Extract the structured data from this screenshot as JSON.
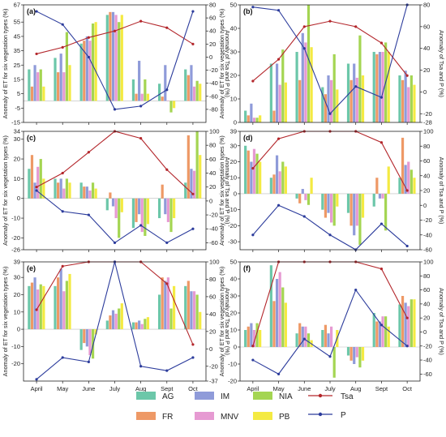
{
  "figure": {
    "series_colors": {
      "AG": "#6cc7a9",
      "FR": "#ee9966",
      "IM": "#8f9bd9",
      "MNV": "#e69ad2",
      "NIA": "#a4d552",
      "PB": "#f4ea42",
      "Tsa": "#b3262b",
      "P": "#2c3c9c"
    },
    "legend": {
      "bar_entries": [
        "AG",
        "FR",
        "IM",
        "MNV",
        "NIA",
        "PB"
      ],
      "line_entries": [
        "Tsa",
        "P"
      ]
    }
  },
  "chart_data": [
    {
      "panel": "(a)",
      "type": "bar",
      "categories": [
        "April",
        "May",
        "June",
        "July",
        "Aug",
        "Sept",
        "Oct"
      ],
      "ylabel_left": "Anomaly of ET for six vegetation types (%)",
      "ylabel_right": "Anomaly of Tsa and P (%)",
      "ylim": [
        -15,
        67
      ],
      "yticks": [
        -15,
        -5,
        5,
        15,
        25,
        35,
        45,
        55,
        67
      ],
      "y2lim": [
        -100,
        80
      ],
      "y2ticks": [
        -80,
        -60,
        -40,
        -20,
        0,
        20,
        40,
        60,
        80
      ],
      "series": [
        {
          "name": "AG",
          "values": [
            22,
            30,
            40,
            60,
            15,
            12,
            22
          ]
        },
        {
          "name": "FR",
          "values": [
            10,
            20,
            42,
            62,
            5,
            3,
            18
          ]
        },
        {
          "name": "IM",
          "values": [
            25,
            33,
            45,
            62,
            28,
            25,
            25
          ]
        },
        {
          "name": "MNV",
          "values": [
            20,
            20,
            42,
            60,
            5,
            0,
            10
          ]
        },
        {
          "name": "NIA",
          "values": [
            22,
            48,
            54,
            55,
            15,
            -8,
            14
          ]
        },
        {
          "name": "PB",
          "values": [
            10,
            25,
            55,
            60,
            5,
            -5,
            12
          ]
        }
      ],
      "lines": [
        {
          "name": "Tsa",
          "values": [
            5,
            15,
            30,
            40,
            55,
            45,
            20
          ]
        },
        {
          "name": "P",
          "values": [
            70,
            50,
            0,
            -80,
            -75,
            -50,
            70
          ]
        }
      ]
    },
    {
      "panel": "(b)",
      "type": "bar",
      "categories": [
        "April",
        "May",
        "June",
        "July",
        "Aug",
        "Sept",
        "Oct"
      ],
      "ylabel_left": "Anomaly of ET for six vegetation types (%)",
      "ylabel_right": "Anomaly of Tsa and P (%)",
      "ylim": [
        0,
        50
      ],
      "yticks": [
        0,
        10,
        20,
        30,
        40,
        50
      ],
      "y2lim": [
        -28,
        80
      ],
      "y2ticks": [
        -28,
        -20,
        0,
        20,
        40,
        60,
        80
      ],
      "series": [
        {
          "name": "AG",
          "values": [
            5,
            25,
            30,
            15,
            25,
            30,
            20
          ]
        },
        {
          "name": "FR",
          "values": [
            3,
            5,
            18,
            12,
            18,
            29,
            18
          ]
        },
        {
          "name": "IM",
          "values": [
            8,
            25,
            38,
            20,
            25,
            30,
            22
          ]
        },
        {
          "name": "MNV",
          "values": [
            2,
            16,
            34,
            18,
            19,
            30,
            15
          ]
        },
        {
          "name": "NIA",
          "values": [
            2,
            31,
            50,
            29,
            37,
            34,
            20
          ]
        },
        {
          "name": "PB",
          "values": [
            3,
            17,
            32,
            14,
            20,
            30,
            16
          ]
        }
      ],
      "lines": [
        {
          "name": "Tsa",
          "values": [
            10,
            30,
            60,
            65,
            60,
            45,
            15
          ]
        },
        {
          "name": "P",
          "values": [
            78,
            75,
            40,
            -20,
            5,
            -5,
            80
          ]
        }
      ]
    },
    {
      "panel": "(c)",
      "type": "bar",
      "categories": [
        "April",
        "May",
        "June",
        "July",
        "Aug",
        "Sept",
        "Oct"
      ],
      "ylabel_left": "Anomaly of ET for six vegetation types (%)",
      "ylabel_right": "Anomaly of Tsa and P (%)",
      "ylim": [
        -26,
        34
      ],
      "yticks": [
        -26,
        -20,
        -10,
        0,
        10,
        20,
        30,
        34
      ],
      "y2lim": [
        -70,
        100
      ],
      "y2ticks": [
        -60,
        -40,
        -20,
        0,
        20,
        40,
        60,
        80,
        100
      ],
      "series": [
        {
          "name": "AG",
          "values": [
            15,
            10,
            8,
            -6,
            -15,
            -10,
            8
          ]
        },
        {
          "name": "FR",
          "values": [
            22,
            8,
            6,
            3,
            -12,
            7,
            32
          ]
        },
        {
          "name": "IM",
          "values": [
            8,
            10,
            6,
            -4,
            -8,
            -8,
            15
          ]
        },
        {
          "name": "MNV",
          "values": [
            16,
            5,
            4,
            -10,
            -17,
            -12,
            14
          ]
        },
        {
          "name": "NIA",
          "values": [
            20,
            10,
            8,
            -20,
            -19,
            -17,
            34
          ]
        },
        {
          "name": "PB",
          "values": [
            10,
            8,
            5,
            -7,
            -13,
            -10,
            22
          ]
        }
      ],
      "lines": [
        {
          "name": "Tsa",
          "values": [
            20,
            40,
            70,
            100,
            90,
            45,
            10
          ]
        },
        {
          "name": "P",
          "values": [
            15,
            -15,
            -20,
            -60,
            -35,
            -60,
            -40
          ]
        }
      ]
    },
    {
      "panel": "(d)",
      "type": "bar",
      "categories": [
        "April",
        "May",
        "June",
        "July",
        "Aug",
        "Sept",
        "Oct"
      ],
      "ylabel_left": "Anomaly of ET for six vegetation types (%)",
      "ylabel_right": "Anomaly of Tsa and P (%)",
      "ylim": [
        -35,
        39
      ],
      "yticks": [
        -30,
        -20,
        -10,
        0,
        10,
        20,
        30,
        39
      ],
      "y2lim": [
        -60,
        100
      ],
      "y2ticks": [
        -60,
        -40,
        -20,
        0,
        20,
        40,
        60,
        80,
        100
      ],
      "series": [
        {
          "name": "AG",
          "values": [
            30,
            10,
            -3,
            -10,
            -12,
            -8,
            10
          ]
        },
        {
          "name": "FR",
          "values": [
            27,
            12,
            -6,
            -15,
            -20,
            10,
            35
          ]
        },
        {
          "name": "IM",
          "values": [
            20,
            24,
            3,
            -12,
            -26,
            -3,
            18
          ]
        },
        {
          "name": "MNV",
          "values": [
            28,
            14,
            -4,
            -18,
            -20,
            -3,
            20
          ]
        },
        {
          "name": "NIA",
          "values": [
            25,
            20,
            -7,
            -20,
            -32,
            -23,
            15
          ]
        },
        {
          "name": "PB",
          "values": [
            20,
            17,
            10,
            -8,
            -15,
            17,
            10
          ]
        }
      ],
      "lines": [
        {
          "name": "Tsa",
          "values": [
            50,
            90,
            100,
            100,
            100,
            85,
            20
          ]
        },
        {
          "name": "P",
          "values": [
            -40,
            0,
            -15,
            -40,
            -60,
            -25,
            -55
          ]
        }
      ]
    },
    {
      "panel": "(e)",
      "type": "bar",
      "categories": [
        "April",
        "May",
        "June",
        "July",
        "Aug",
        "Sept",
        "Oct"
      ],
      "ylabel_left": "Anomaly of ET for six vegetation types (%)",
      "ylabel_right": "Anomaly of Tsa and P (%)",
      "ylim": [
        -30,
        39
      ],
      "yticks": [
        -20,
        -10,
        0,
        10,
        20,
        30,
        39
      ],
      "y2lim": [
        -37,
        100
      ],
      "y2ticks": [
        -37,
        -20,
        0,
        20,
        40,
        60,
        80,
        100
      ],
      "series": [
        {
          "name": "AG",
          "values": [
            25,
            25,
            -12,
            5,
            4,
            20,
            25
          ]
        },
        {
          "name": "FR",
          "values": [
            27,
            30,
            -8,
            8,
            4,
            30,
            28
          ]
        },
        {
          "name": "IM",
          "values": [
            30,
            35,
            -10,
            11,
            5,
            28,
            22
          ]
        },
        {
          "name": "MNV",
          "values": [
            23,
            22,
            -15,
            9,
            3,
            30,
            22
          ]
        },
        {
          "name": "NIA",
          "values": [
            26,
            28,
            -17,
            12,
            6,
            12,
            20
          ]
        },
        {
          "name": "PB",
          "values": [
            25,
            32,
            -3,
            15,
            7,
            25,
            10
          ]
        }
      ],
      "lines": [
        {
          "name": "Tsa",
          "values": [
            45,
            95,
            100,
            100,
            100,
            75,
            5
          ]
        },
        {
          "name": "P",
          "values": [
            -35,
            -10,
            -15,
            100,
            -20,
            -25,
            -10
          ]
        }
      ]
    },
    {
      "panel": "(f)",
      "type": "bar",
      "categories": [
        "April",
        "May",
        "June",
        "July",
        "Aug",
        "Sept",
        "Oct"
      ],
      "ylabel_left": "Anomaly of ET for six vegetation types (%)",
      "ylabel_right": "Anomaly of Tsa and P (%)",
      "ylim": [
        -20,
        50
      ],
      "yticks": [
        -20,
        -10,
        0,
        10,
        20,
        30,
        40,
        50
      ],
      "y2lim": [
        -70,
        100
      ],
      "y2ticks": [
        -60,
        -40,
        -20,
        0,
        20,
        40,
        60,
        80,
        100
      ],
      "series": [
        {
          "name": "AG",
          "values": [
            10,
            48,
            8,
            10,
            -5,
            20,
            25
          ]
        },
        {
          "name": "FR",
          "values": [
            12,
            27,
            14,
            13,
            -8,
            15,
            30
          ]
        },
        {
          "name": "IM",
          "values": [
            14,
            40,
            12,
            8,
            -10,
            15,
            26
          ]
        },
        {
          "name": "MNV",
          "values": [
            10,
            44,
            12,
            12,
            -6,
            18,
            24
          ]
        },
        {
          "name": "NIA",
          "values": [
            14,
            35,
            8,
            -18,
            -12,
            18,
            28
          ]
        },
        {
          "name": "PB",
          "values": [
            10,
            26,
            4,
            10,
            -8,
            12,
            28
          ]
        }
      ],
      "lines": [
        {
          "name": "Tsa",
          "values": [
            -20,
            100,
            100,
            100,
            100,
            90,
            20
          ]
        },
        {
          "name": "P",
          "values": [
            -40,
            -60,
            -10,
            -35,
            60,
            10,
            -20
          ]
        }
      ]
    }
  ]
}
